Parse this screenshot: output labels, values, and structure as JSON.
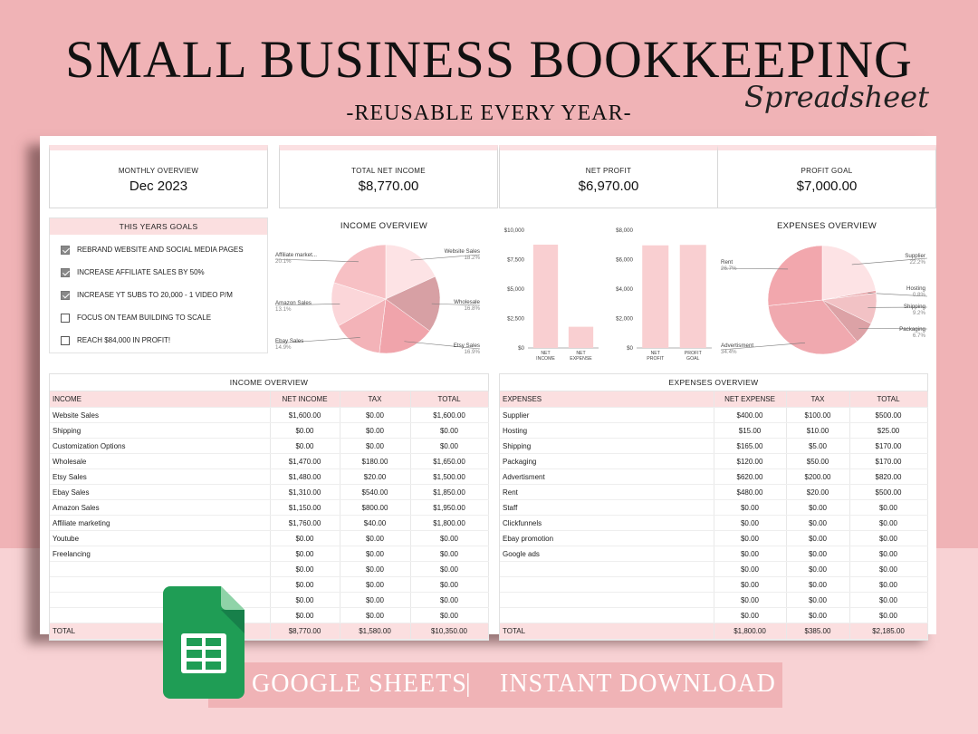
{
  "header": {
    "title": "SMALL BUSINESS BOOKKEEPING",
    "script": "Spreadsheet",
    "subtitle": "-REUSABLE EVERY YEAR-"
  },
  "kpis": [
    {
      "label": "MONTHLY OVERVIEW",
      "value": "Dec 2023"
    },
    {
      "label": "TOTAL NET INCOME",
      "value": "$8,770.00"
    },
    {
      "label": "NET PROFIT",
      "value": "$6,970.00"
    },
    {
      "label": "PROFIT GOAL",
      "value": "$7,000.00"
    }
  ],
  "goals": {
    "title": "THIS YEARS GOALS",
    "items": [
      {
        "text": "REBRAND WEBSITE AND SOCIAL MEDIA PAGES",
        "checked": true
      },
      {
        "text": "INCREASE AFFILIATE SALES BY 50%",
        "checked": true
      },
      {
        "text": "INCREASE YT SUBS TO 20,000 - 1 VIDEO P/M",
        "checked": true
      },
      {
        "text": "FOCUS ON TEAM BUILDING TO SCALE",
        "checked": false
      },
      {
        "text": "REACH $84,000 IN PROFIT!",
        "checked": false
      }
    ]
  },
  "colors": {
    "pink_bg": "#f0b3b6",
    "light_pink": "#fbdfe0",
    "bar": "#f8cfd1"
  },
  "chart_data": [
    {
      "type": "pie",
      "title": "INCOME OVERVIEW",
      "labels": [
        "Website Sales",
        "Wholesale",
        "Etsy Sales",
        "Ebay Sales",
        "Amazon Sales",
        "Affiliate market..."
      ],
      "pct_labels": [
        "18.2%",
        "16.8%",
        "16.9%",
        "14.9%",
        "13.1%",
        "20.1%"
      ],
      "values": [
        18.2,
        16.8,
        16.9,
        14.9,
        13.1,
        20.1
      ],
      "colors": [
        "#fde3e5",
        "#d7a0a4",
        "#f0a4ab",
        "#f3b3b8",
        "#fbd6d9",
        "#f7c0c4"
      ]
    },
    {
      "type": "bar",
      "categories": [
        "NET INCOME",
        "NET EXPENSE"
      ],
      "values": [
        8770,
        1800
      ],
      "ylim": [
        0,
        10000
      ],
      "yticks": [
        "$0",
        "$2,500",
        "$5,000",
        "$7,500",
        "$10,000"
      ],
      "ytick_values": [
        0,
        2500,
        5000,
        7500,
        10000
      ]
    },
    {
      "type": "bar",
      "categories": [
        "NET PROFIT",
        "PROFIT GOAL"
      ],
      "values": [
        6970,
        7000
      ],
      "ylim": [
        0,
        8000
      ],
      "yticks": [
        "$0",
        "$2,000",
        "$4,000",
        "$6,000",
        "$8,000"
      ],
      "ytick_values": [
        0,
        2000,
        4000,
        6000,
        8000
      ]
    },
    {
      "type": "pie",
      "title": "EXPENSES OVERVIEW",
      "labels": [
        "Supplier",
        "Hosting",
        "Shipping",
        "Packaging",
        "Advertisment",
        "Rent"
      ],
      "pct_labels": [
        "22.2%",
        "0.8%",
        "9.2%",
        "6.7%",
        "34.4%",
        "26.7%"
      ],
      "values": [
        22.2,
        0.8,
        9.2,
        6.7,
        34.4,
        26.7
      ],
      "colors": [
        "#fde3e5",
        "#e9a9ad",
        "#f2c2c5",
        "#dca2a6",
        "#f0a9af",
        "#f2a7ad"
      ]
    }
  ],
  "income_table": {
    "title": "INCOME OVERVIEW",
    "headers": [
      "INCOME",
      "NET INCOME",
      "TAX",
      "TOTAL"
    ],
    "rows": [
      [
        "Website Sales",
        "$1,600.00",
        "$0.00",
        "$1,600.00"
      ],
      [
        "Shipping",
        "$0.00",
        "$0.00",
        "$0.00"
      ],
      [
        "Customization Options",
        "$0.00",
        "$0.00",
        "$0.00"
      ],
      [
        "Wholesale",
        "$1,470.00",
        "$180.00",
        "$1,650.00"
      ],
      [
        "Etsy Sales",
        "$1,480.00",
        "$20.00",
        "$1,500.00"
      ],
      [
        "Ebay Sales",
        "$1,310.00",
        "$540.00",
        "$1,850.00"
      ],
      [
        "Amazon Sales",
        "$1,150.00",
        "$800.00",
        "$1,950.00"
      ],
      [
        "Affiliate marketing",
        "$1,760.00",
        "$40.00",
        "$1,800.00"
      ],
      [
        "Youtube",
        "$0.00",
        "$0.00",
        "$0.00"
      ],
      [
        "Freelancing",
        "$0.00",
        "$0.00",
        "$0.00"
      ],
      [
        "",
        "$0.00",
        "$0.00",
        "$0.00"
      ],
      [
        "",
        "$0.00",
        "$0.00",
        "$0.00"
      ],
      [
        "",
        "$0.00",
        "$0.00",
        "$0.00"
      ],
      [
        "",
        "$0.00",
        "$0.00",
        "$0.00"
      ]
    ],
    "footer": [
      "TOTAL",
      "$8,770.00",
      "$1,580.00",
      "$10,350.00"
    ]
  },
  "expense_table": {
    "title": "EXPENSES OVERVIEW",
    "headers": [
      "EXPENSES",
      "NET EXPENSE",
      "TAX",
      "TOTAL"
    ],
    "rows": [
      [
        "Supplier",
        "$400.00",
        "$100.00",
        "$500.00"
      ],
      [
        "Hosting",
        "$15.00",
        "$10.00",
        "$25.00"
      ],
      [
        "Shipping",
        "$165.00",
        "$5.00",
        "$170.00"
      ],
      [
        "Packaging",
        "$120.00",
        "$50.00",
        "$170.00"
      ],
      [
        "Advertisment",
        "$620.00",
        "$200.00",
        "$820.00"
      ],
      [
        "Rent",
        "$480.00",
        "$20.00",
        "$500.00"
      ],
      [
        "Staff",
        "$0.00",
        "$0.00",
        "$0.00"
      ],
      [
        "Clickfunnels",
        "$0.00",
        "$0.00",
        "$0.00"
      ],
      [
        "Ebay promotion",
        "$0.00",
        "$0.00",
        "$0.00"
      ],
      [
        "Google ads",
        "$0.00",
        "$0.00",
        "$0.00"
      ],
      [
        "",
        "$0.00",
        "$0.00",
        "$0.00"
      ],
      [
        "",
        "$0.00",
        "$0.00",
        "$0.00"
      ],
      [
        "",
        "$0.00",
        "$0.00",
        "$0.00"
      ],
      [
        "",
        "$0.00",
        "$0.00",
        "$0.00"
      ]
    ],
    "footer": [
      "TOTAL",
      "$1,800.00",
      "$385.00",
      "$2,185.00"
    ]
  },
  "footer_banner": {
    "left": "GOOGLE SHEETS",
    "divider": "|",
    "right": "INSTANT DOWNLOAD",
    "icon": "google-sheets-icon"
  }
}
